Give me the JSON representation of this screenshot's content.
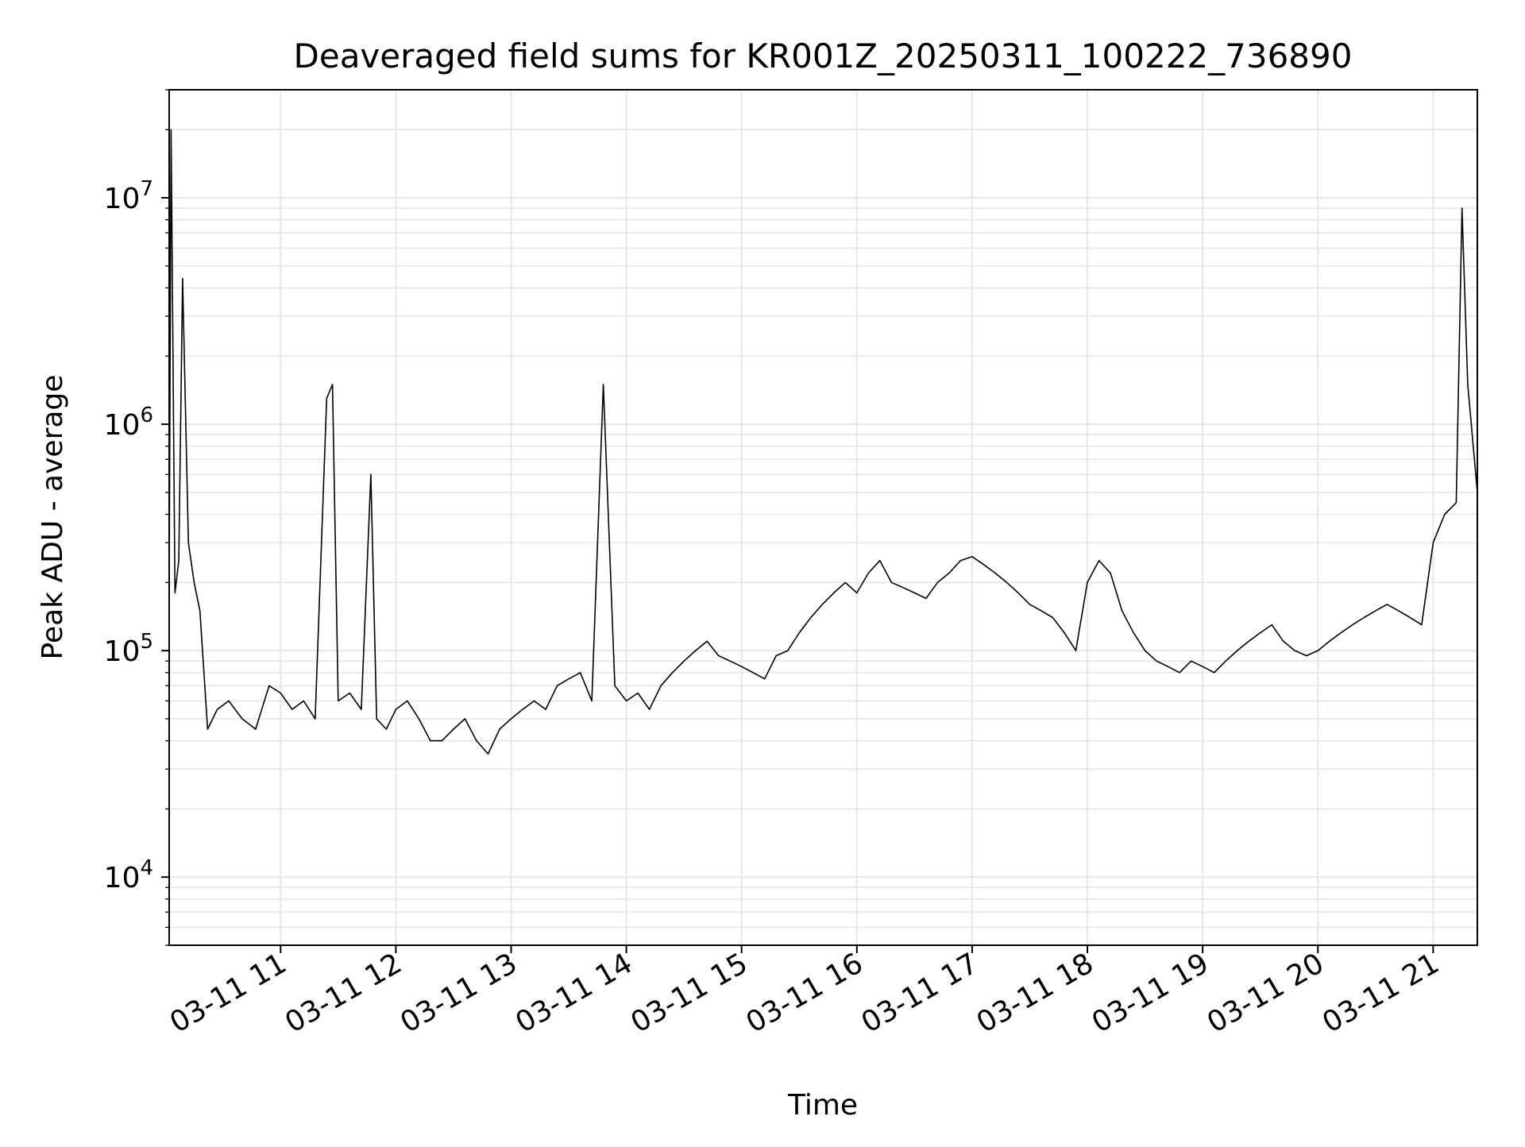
{
  "chart_data": {
    "type": "line",
    "title": "Deaveraged field sums for KR001Z_20250311_100222_736890",
    "xlabel": "Time",
    "ylabel": "Peak ADU - average",
    "yscale": "log",
    "ylim": [
      5000,
      30000000
    ],
    "xlim": [
      "2025-03-11 10:02",
      "2025-03-11 21:23"
    ],
    "grid": true,
    "line_color": "#000000",
    "grid_color": "#e6e6e6",
    "x_ticks": [
      {
        "value": "2025-03-11 11:00",
        "label": "03-11 11"
      },
      {
        "value": "2025-03-11 12:00",
        "label": "03-11 12"
      },
      {
        "value": "2025-03-11 13:00",
        "label": "03-11 13"
      },
      {
        "value": "2025-03-11 14:00",
        "label": "03-11 14"
      },
      {
        "value": "2025-03-11 15:00",
        "label": "03-11 15"
      },
      {
        "value": "2025-03-11 16:00",
        "label": "03-11 16"
      },
      {
        "value": "2025-03-11 17:00",
        "label": "03-11 17"
      },
      {
        "value": "2025-03-11 18:00",
        "label": "03-11 18"
      },
      {
        "value": "2025-03-11 19:00",
        "label": "03-11 19"
      },
      {
        "value": "2025-03-11 20:00",
        "label": "03-11 20"
      },
      {
        "value": "2025-03-11 21:00",
        "label": "03-11 21"
      }
    ],
    "y_ticks": [
      {
        "value": 10000,
        "base": "10",
        "exp": "4"
      },
      {
        "value": 100000,
        "base": "10",
        "exp": "5"
      },
      {
        "value": 1000000,
        "base": "10",
        "exp": "6"
      },
      {
        "value": 10000000,
        "base": "10",
        "exp": "7"
      }
    ],
    "series": [
      {
        "x": [
          "2025-03-11 10:02",
          "2025-03-11 10:03",
          "2025-03-11 10:05",
          "2025-03-11 10:07",
          "2025-03-11 10:09",
          "2025-03-11 10:12",
          "2025-03-11 10:15",
          "2025-03-11 10:18",
          "2025-03-11 10:22",
          "2025-03-11 10:27",
          "2025-03-11 10:33",
          "2025-03-11 10:40",
          "2025-03-11 10:47",
          "2025-03-11 10:54",
          "2025-03-11 11:00",
          "2025-03-11 11:06",
          "2025-03-11 11:12",
          "2025-03-11 11:18",
          "2025-03-11 11:24",
          "2025-03-11 11:27",
          "2025-03-11 11:30",
          "2025-03-11 11:36",
          "2025-03-11 11:42",
          "2025-03-11 11:47",
          "2025-03-11 11:50",
          "2025-03-11 11:55",
          "2025-03-11 12:00",
          "2025-03-11 12:06",
          "2025-03-11 12:12",
          "2025-03-11 12:18",
          "2025-03-11 12:24",
          "2025-03-11 12:30",
          "2025-03-11 12:36",
          "2025-03-11 12:42",
          "2025-03-11 12:48",
          "2025-03-11 12:54",
          "2025-03-11 13:00",
          "2025-03-11 13:06",
          "2025-03-11 13:12",
          "2025-03-11 13:18",
          "2025-03-11 13:24",
          "2025-03-11 13:30",
          "2025-03-11 13:36",
          "2025-03-11 13:42",
          "2025-03-11 13:48",
          "2025-03-11 13:54",
          "2025-03-11 14:00",
          "2025-03-11 14:06",
          "2025-03-11 14:12",
          "2025-03-11 14:18",
          "2025-03-11 14:24",
          "2025-03-11 14:30",
          "2025-03-11 14:36",
          "2025-03-11 14:42",
          "2025-03-11 14:48",
          "2025-03-11 14:54",
          "2025-03-11 15:00",
          "2025-03-11 15:06",
          "2025-03-11 15:12",
          "2025-03-11 15:18",
          "2025-03-11 15:24",
          "2025-03-11 15:30",
          "2025-03-11 15:36",
          "2025-03-11 15:42",
          "2025-03-11 15:48",
          "2025-03-11 15:54",
          "2025-03-11 16:00",
          "2025-03-11 16:06",
          "2025-03-11 16:12",
          "2025-03-11 16:18",
          "2025-03-11 16:24",
          "2025-03-11 16:30",
          "2025-03-11 16:36",
          "2025-03-11 16:42",
          "2025-03-11 16:48",
          "2025-03-11 16:54",
          "2025-03-11 17:00",
          "2025-03-11 17:06",
          "2025-03-11 17:12",
          "2025-03-11 17:18",
          "2025-03-11 17:24",
          "2025-03-11 17:30",
          "2025-03-11 17:36",
          "2025-03-11 17:42",
          "2025-03-11 17:48",
          "2025-03-11 17:54",
          "2025-03-11 18:00",
          "2025-03-11 18:06",
          "2025-03-11 18:12",
          "2025-03-11 18:18",
          "2025-03-11 18:24",
          "2025-03-11 18:30",
          "2025-03-11 18:36",
          "2025-03-11 18:42",
          "2025-03-11 18:48",
          "2025-03-11 18:54",
          "2025-03-11 19:00",
          "2025-03-11 19:06",
          "2025-03-11 19:12",
          "2025-03-11 19:18",
          "2025-03-11 19:24",
          "2025-03-11 19:30",
          "2025-03-11 19:36",
          "2025-03-11 19:42",
          "2025-03-11 19:48",
          "2025-03-11 19:54",
          "2025-03-11 20:00",
          "2025-03-11 20:06",
          "2025-03-11 20:12",
          "2025-03-11 20:18",
          "2025-03-11 20:24",
          "2025-03-11 20:30",
          "2025-03-11 20:36",
          "2025-03-11 20:42",
          "2025-03-11 20:48",
          "2025-03-11 20:54",
          "2025-03-11 21:00",
          "2025-03-11 21:06",
          "2025-03-11 21:12",
          "2025-03-11 21:15",
          "2025-03-11 21:18",
          "2025-03-11 21:23"
        ],
        "y": [
          200000,
          20000000,
          180000,
          250000,
          4400000,
          300000,
          200000,
          150000,
          45000,
          55000,
          60000,
          50000,
          45000,
          70000,
          65000,
          55000,
          60000,
          50000,
          1300000,
          1500000,
          60000,
          65000,
          55000,
          600000,
          50000,
          45000,
          55000,
          60000,
          50000,
          40000,
          40000,
          45000,
          50000,
          40000,
          35000,
          45000,
          50000,
          55000,
          60000,
          55000,
          70000,
          75000,
          80000,
          60000,
          1500000,
          70000,
          60000,
          65000,
          55000,
          70000,
          80000,
          90000,
          100000,
          110000,
          95000,
          90000,
          85000,
          80000,
          75000,
          95000,
          100000,
          120000,
          140000,
          160000,
          180000,
          200000,
          180000,
          220000,
          250000,
          200000,
          190000,
          180000,
          170000,
          200000,
          220000,
          250000,
          260000,
          240000,
          220000,
          200000,
          180000,
          160000,
          150000,
          140000,
          120000,
          100000,
          200000,
          250000,
          220000,
          150000,
          120000,
          100000,
          90000,
          85000,
          80000,
          90000,
          85000,
          80000,
          90000,
          100000,
          110000,
          120000,
          130000,
          110000,
          100000,
          95000,
          100000,
          110000,
          120000,
          130000,
          140000,
          150000,
          160000,
          150000,
          140000,
          130000,
          300000,
          400000,
          450000,
          9000000,
          1500000,
          500000
        ]
      }
    ]
  }
}
